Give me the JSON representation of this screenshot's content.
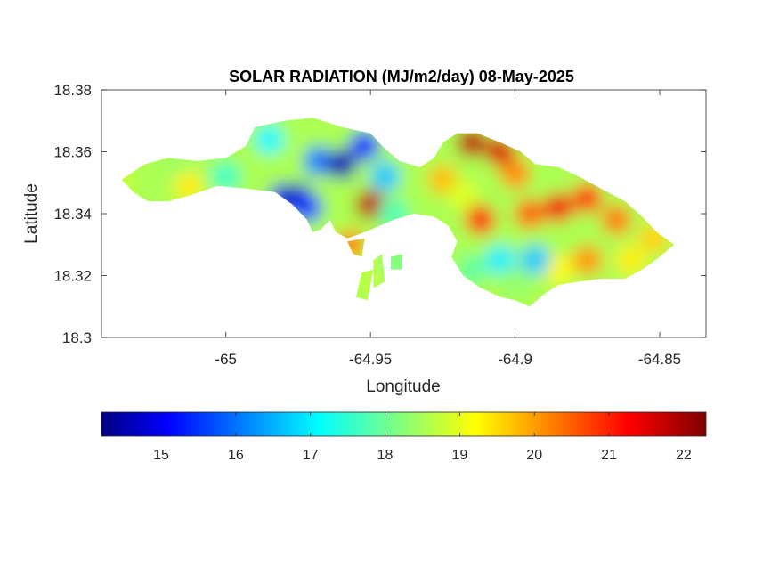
{
  "chart_data": {
    "type": "heatmap",
    "title": "SOLAR RADIATION (MJ/m2/day) 08-May-2025",
    "xlabel": "Longitude",
    "ylabel": "Latitude",
    "xlim": [
      -65.043,
      -64.834
    ],
    "ylim": [
      18.3,
      18.38
    ],
    "xticks": [
      -65,
      -64.95,
      -64.9,
      -64.85
    ],
    "xtick_labels": [
      "-65",
      "-64.95",
      "-64.9",
      "-64.85"
    ],
    "yticks": [
      18.3,
      18.32,
      18.34,
      18.36,
      18.38
    ],
    "ytick_labels": [
      "18.3",
      "18.32",
      "18.34",
      "18.36",
      "18.38"
    ],
    "colormap": "jet",
    "colorbar": {
      "location": "below",
      "range": [
        14.2,
        22.3
      ],
      "ticks": [
        15,
        16,
        17,
        18,
        19,
        20,
        21,
        22
      ],
      "tick_labels": [
        "15",
        "16",
        "17",
        "18",
        "19",
        "20",
        "21",
        "22"
      ]
    },
    "grid": false,
    "land_outline": [
      [
        -65.036,
        18.351
      ],
      [
        -65.028,
        18.356
      ],
      [
        -65.02,
        18.358
      ],
      [
        -65.01,
        18.357
      ],
      [
        -65.0,
        18.358
      ],
      [
        -64.993,
        18.362
      ],
      [
        -64.99,
        18.368
      ],
      [
        -64.98,
        18.37
      ],
      [
        -64.97,
        18.371
      ],
      [
        -64.96,
        18.368
      ],
      [
        -64.95,
        18.366
      ],
      [
        -64.945,
        18.361
      ],
      [
        -64.94,
        18.357
      ],
      [
        -64.933,
        18.355
      ],
      [
        -64.928,
        18.358
      ],
      [
        -64.925,
        18.363
      ],
      [
        -64.92,
        18.366
      ],
      [
        -64.913,
        18.366
      ],
      [
        -64.905,
        18.363
      ],
      [
        -64.898,
        18.36
      ],
      [
        -64.893,
        18.356
      ],
      [
        -64.885,
        18.355
      ],
      [
        -64.878,
        18.352
      ],
      [
        -64.87,
        18.348
      ],
      [
        -64.862,
        18.344
      ],
      [
        -64.856,
        18.339
      ],
      [
        -64.851,
        18.334
      ],
      [
        -64.845,
        18.33
      ],
      [
        -64.85,
        18.326
      ],
      [
        -64.856,
        18.322
      ],
      [
        -64.862,
        18.319
      ],
      [
        -64.87,
        18.319
      ],
      [
        -64.878,
        18.318
      ],
      [
        -64.885,
        18.317
      ],
      [
        -64.89,
        18.314
      ],
      [
        -64.895,
        18.31
      ],
      [
        -64.9,
        18.312
      ],
      [
        -64.905,
        18.313
      ],
      [
        -64.912,
        18.316
      ],
      [
        -64.918,
        18.32
      ],
      [
        -64.922,
        18.326
      ],
      [
        -64.92,
        18.331
      ],
      [
        -64.923,
        18.336
      ],
      [
        -64.928,
        18.339
      ],
      [
        -64.935,
        18.34
      ],
      [
        -64.942,
        18.338
      ],
      [
        -64.947,
        18.336
      ],
      [
        -64.952,
        18.334
      ],
      [
        -64.958,
        18.332
      ],
      [
        -64.962,
        18.334
      ],
      [
        -64.964,
        18.338
      ],
      [
        -64.967,
        18.335
      ],
      [
        -64.97,
        18.334
      ],
      [
        -64.972,
        18.338
      ],
      [
        -64.977,
        18.343
      ],
      [
        -64.983,
        18.347
      ],
      [
        -64.992,
        18.348
      ],
      [
        -65.003,
        18.349
      ],
      [
        -65.012,
        18.346
      ],
      [
        -65.02,
        18.344
      ],
      [
        -65.027,
        18.344
      ],
      [
        -65.032,
        18.347
      ]
    ],
    "islets": [
      [
        [
          -64.958,
          18.331
        ],
        [
          -64.952,
          18.332
        ],
        [
          -64.953,
          18.326
        ],
        [
          -64.956,
          18.327
        ]
      ],
      [
        [
          -64.949,
          18.325
        ],
        [
          -64.946,
          18.327
        ],
        [
          -64.945,
          18.318
        ],
        [
          -64.949,
          18.316
        ]
      ],
      [
        [
          -64.953,
          18.321
        ],
        [
          -64.949,
          18.322
        ],
        [
          -64.951,
          18.312
        ],
        [
          -64.955,
          18.313
        ]
      ],
      [
        [
          -64.943,
          18.326
        ],
        [
          -64.939,
          18.327
        ],
        [
          -64.939,
          18.322
        ],
        [
          -64.943,
          18.322
        ]
      ]
    ],
    "field_base": 18.6,
    "field_points": [
      {
        "lon": -65.036,
        "lat": 18.351,
        "value": 18.8
      },
      {
        "lon": -65.015,
        "lat": 18.353,
        "value": 18.4
      },
      {
        "lon": -65.013,
        "lat": 18.349,
        "value": 19.4
      },
      {
        "lon": -65.0,
        "lat": 18.352,
        "value": 17.7
      },
      {
        "lon": -64.985,
        "lat": 18.364,
        "value": 17.2
      },
      {
        "lon": -64.98,
        "lat": 18.345,
        "value": 15.0
      },
      {
        "lon": -64.975,
        "lat": 18.345,
        "value": 14.7
      },
      {
        "lon": -64.972,
        "lat": 18.342,
        "value": 15.6
      },
      {
        "lon": -64.968,
        "lat": 18.357,
        "value": 16.2
      },
      {
        "lon": -64.96,
        "lat": 18.356,
        "value": 14.6
      },
      {
        "lon": -64.952,
        "lat": 18.362,
        "value": 15.5
      },
      {
        "lon": -64.95,
        "lat": 18.343,
        "value": 21.8
      },
      {
        "lon": -64.945,
        "lat": 18.352,
        "value": 16.8
      },
      {
        "lon": -64.942,
        "lat": 18.34,
        "value": 17.8
      },
      {
        "lon": -64.935,
        "lat": 18.355,
        "value": 18.6
      },
      {
        "lon": -64.925,
        "lat": 18.351,
        "value": 19.8
      },
      {
        "lon": -64.918,
        "lat": 18.346,
        "value": 19.0
      },
      {
        "lon": -64.915,
        "lat": 18.363,
        "value": 21.8
      },
      {
        "lon": -64.905,
        "lat": 18.36,
        "value": 21.6
      },
      {
        "lon": -64.912,
        "lat": 18.338,
        "value": 21.3
      },
      {
        "lon": -64.9,
        "lat": 18.353,
        "value": 20.2
      },
      {
        "lon": -64.895,
        "lat": 18.34,
        "value": 20.5
      },
      {
        "lon": -64.885,
        "lat": 18.342,
        "value": 21.4
      },
      {
        "lon": -64.875,
        "lat": 18.345,
        "value": 20.9
      },
      {
        "lon": -64.865,
        "lat": 18.338,
        "value": 20.3
      },
      {
        "lon": -64.852,
        "lat": 18.332,
        "value": 19.6
      },
      {
        "lon": -64.86,
        "lat": 18.325,
        "value": 19.4
      },
      {
        "lon": -64.875,
        "lat": 18.325,
        "value": 20.1
      },
      {
        "lon": -64.885,
        "lat": 18.322,
        "value": 19.3
      },
      {
        "lon": -64.893,
        "lat": 18.325,
        "value": 16.8
      },
      {
        "lon": -64.905,
        "lat": 18.325,
        "value": 17.1
      },
      {
        "lon": -64.915,
        "lat": 18.322,
        "value": 18.0
      },
      {
        "lon": -64.9,
        "lat": 18.318,
        "value": 18.4
      },
      {
        "lon": -64.957,
        "lat": 18.33,
        "value": 20.2
      },
      {
        "lon": -64.947,
        "lat": 18.322,
        "value": 18.8
      },
      {
        "lon": -64.951,
        "lat": 18.317,
        "value": 18.7
      },
      {
        "lon": -64.941,
        "lat": 18.324,
        "value": 18.2
      }
    ]
  }
}
